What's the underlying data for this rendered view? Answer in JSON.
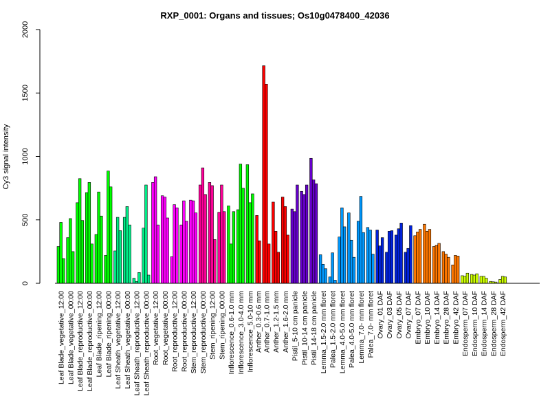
{
  "chart_data": {
    "type": "bar",
    "title": "RXP_0001: Organs and tissues; Os10g0478400_42036",
    "ylabel": "Cy3 signal intensity",
    "xlabel": "",
    "ylim": [
      0,
      2000
    ],
    "yticks": [
      0,
      500,
      1000,
      1500,
      2000
    ],
    "grid": false,
    "legend": "none",
    "tick_labels": [
      "Leaf Blade_vegetative_12:00",
      "Leaf Blade_vegetative_00:00",
      "Leaf Blade_reproductive_12:00",
      "Leaf Blade_reproductive_00:00",
      "Leaf Blade_ripening_12:00",
      "Leaf Blade_ripening_00:00",
      "Leaf Sheath_vegetative_12:00",
      "Leaf Sheath_vegetative_00:00",
      "Leaf Sheath_reproductive_12:00",
      "Leaf Sheath_reproductive_00:00",
      "Root_vegetative_12:00",
      "Root_vegetative_00:00",
      "Root_reproductive_12:00",
      "Root_reproductive_00:00",
      "Stem_reproductive_12:00",
      "Stem_reproductive_00:00",
      "Stem_ripening_12:00",
      "Stem_ripening_00:00",
      "Inflorescence_0.6-1.0 mm",
      "Inflorescence_3.0-4.0 mm",
      "Inflorescence_5.0-10 mm",
      "Anther_0.3-0.6 mm",
      "Anther_0.7-1.0 mm",
      "Anther_1.2-1.5 mm",
      "Anther_1.6-2.0 mm",
      "Pistil_5-10 cm panicle",
      "Pistil_10-14 cm panicle",
      "Pistil_14-18 cm panicle",
      "Lemma_1.5-2.0 mm floret",
      "Palea_1.5-2.0 mm floret",
      "Lemma_4.0-5.0 mm floret",
      "Palea_4.0-5.0 mm floret",
      "Lemma_7.0- mm floret",
      "Palea_7.0- mm floret",
      "Ovary_01 DAF",
      "Ovary_03 DAF",
      "Ovary_05 DAF",
      "Ovary_07 DAF",
      "Embryo_07 DAF",
      "Embryo_10 DAF",
      "Embryo_14 DAF",
      "Embryo_28 DAF",
      "Embryo_42 DAF",
      "Endosperm_07 DAF",
      "Endosperm_10 DAF",
      "Endosperm_14 DAF",
      "Endosperm_28 DAF",
      "Endosperm_42 DAF"
    ],
    "groups": [
      {
        "values": [
          290,
          480,
          195
        ],
        "color": "#00FF00"
      },
      {
        "values": [
          360,
          510,
          250
        ],
        "color": "#00FF00"
      },
      {
        "values": [
          635,
          825,
          495
        ],
        "color": "#00FF00"
      },
      {
        "values": [
          715,
          795,
          310
        ],
        "color": "#00FF00"
      },
      {
        "values": [
          385,
          720,
          530
        ],
        "color": "#00FF00"
      },
      {
        "values": [
          220,
          885,
          760
        ],
        "color": "#00FF00"
      },
      {
        "values": [
          255,
          520,
          415
        ],
        "color": "#00EE88"
      },
      {
        "values": [
          520,
          605,
          460
        ],
        "color": "#00EE88"
      },
      {
        "values": [
          40,
          15,
          85
        ],
        "color": "#00EE88"
      },
      {
        "values": [
          435,
          775,
          65
        ],
        "color": "#00EE88"
      },
      {
        "values": [
          795,
          840,
          460
        ],
        "color": "#FF00FF"
      },
      {
        "values": [
          690,
          680,
          515
        ],
        "color": "#FF00FF"
      },
      {
        "values": [
          210,
          620,
          595
        ],
        "color": "#FF00FF"
      },
      {
        "values": [
          460,
          650,
          490
        ],
        "color": "#FF00FF"
      },
      {
        "values": [
          655,
          650,
          555
        ],
        "color": "#FF00FF"
      },
      {
        "values": [
          775,
          910,
          700
        ],
        "color": "#FF0099"
      },
      {
        "values": [
          795,
          770,
          345
        ],
        "color": "#FF0099"
      },
      {
        "values": [
          560,
          775,
          565
        ],
        "color": "#FF0099"
      },
      {
        "values": [
          610,
          310,
          565
        ],
        "color": "#00FF00"
      },
      {
        "values": [
          580,
          940,
          750
        ],
        "color": "#00FF00"
      },
      {
        "values": [
          935,
          635,
          705
        ],
        "color": "#00FF00"
      },
      {
        "values": [
          535,
          335
        ],
        "color": "#FF0000"
      },
      {
        "values": [
          1715,
          1570,
          310
        ],
        "color": "#FF0000"
      },
      {
        "values": [
          640,
          410,
          245
        ],
        "color": "#FF0000"
      },
      {
        "values": [
          680,
          605,
          380
        ],
        "color": "#FF0000"
      },
      {
        "values": [
          585,
          565,
          775
        ],
        "color": "#6600CC"
      },
      {
        "values": [
          725,
          700,
          775
        ],
        "color": "#6600CC"
      },
      {
        "values": [
          985,
          815,
          785
        ],
        "color": "#6600CC"
      },
      {
        "values": [
          225,
          150,
          115
        ],
        "color": "#0099FF"
      },
      {
        "values": [
          50,
          240,
          25
        ],
        "color": "#0099FF"
      },
      {
        "values": [
          365,
          595,
          445
        ],
        "color": "#0099FF"
      },
      {
        "values": [
          555,
          340,
          205
        ],
        "color": "#0099FF"
      },
      {
        "values": [
          490,
          685,
          400
        ],
        "color": "#0099FF"
      },
      {
        "values": [
          440,
          420,
          230
        ],
        "color": "#0099FF"
      },
      {
        "values": [
          420,
          295,
          360
        ],
        "color": "#0022DD"
      },
      {
        "values": [
          245,
          410,
          415
        ],
        "color": "#0022DD"
      },
      {
        "values": [
          380,
          430,
          475
        ],
        "color": "#0022DD"
      },
      {
        "values": [
          245,
          275,
          455
        ],
        "color": "#0022DD"
      },
      {
        "values": [
          375,
          405,
          425
        ],
        "color": "#FF7700"
      },
      {
        "values": [
          465,
          410,
          425
        ],
        "color": "#FF7700"
      },
      {
        "values": [
          290,
          300,
          315
        ],
        "color": "#FF7700"
      },
      {
        "values": [
          250,
          230,
          205
        ],
        "color": "#FF7700"
      },
      {
        "values": [
          145,
          220,
          215
        ],
        "color": "#FF7700"
      },
      {
        "values": [
          60,
          55,
          80
        ],
        "color": "#CCFF00"
      },
      {
        "values": [
          70,
          65,
          75
        ],
        "color": "#CCFF00"
      },
      {
        "values": [
          55,
          55,
          40
        ],
        "color": "#CCFF00"
      },
      {
        "values": [
          15,
          12,
          10
        ],
        "color": "#CCFF00"
      },
      {
        "values": [
          30,
          55,
          50
        ],
        "color": "#CCFF00"
      }
    ]
  }
}
